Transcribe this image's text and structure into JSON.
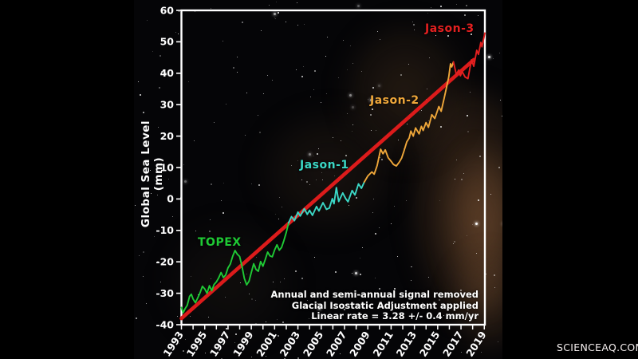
{
  "watermark": "SCIENCEAQ.COM",
  "chart_data": {
    "type": "line",
    "title": "",
    "xlabel": "",
    "ylabel": "Global Sea Level (mm)",
    "xlim": [
      1993,
      2019.05
    ],
    "ylim": [
      -40,
      60
    ],
    "grid": false,
    "y_ticks": [
      -40,
      -30,
      -20,
      -10,
      0,
      10,
      20,
      30,
      40,
      50,
      60
    ],
    "x_tick_labels": [
      1993,
      1995,
      1997,
      1999,
      2001,
      2003,
      2005,
      2007,
      2009,
      2011,
      2013,
      2015,
      2017,
      2019
    ],
    "x_minor_tick_interval": 1,
    "frame_color": "#ffffff",
    "annotations": [
      "Annual and semi-annual signal removed",
      "Glacial Isostatic Adjustment applied",
      "Linear rate =  3.28 +/- 0.4 mm/yr"
    ],
    "trend": {
      "label": "Linear trend",
      "rate_mm_per_yr": 3.28,
      "rate_uncertainty_mm_per_yr": 0.4,
      "color": "#dc1b1b",
      "start": [
        1993.0,
        -38.0
      ],
      "end": [
        2018.1,
        44.3
      ]
    },
    "series": [
      {
        "name": "TOPEX",
        "color": "#1fca35",
        "points": [
          [
            1993.0,
            -34.5
          ],
          [
            1993.15,
            -36.2
          ],
          [
            1993.3,
            -35.0
          ],
          [
            1993.5,
            -33.8
          ],
          [
            1993.7,
            -31.0
          ],
          [
            1993.85,
            -30.3
          ],
          [
            1994.0,
            -31.8
          ],
          [
            1994.2,
            -33.0
          ],
          [
            1994.4,
            -31.5
          ],
          [
            1994.6,
            -29.8
          ],
          [
            1994.8,
            -27.8
          ],
          [
            1995.0,
            -28.6
          ],
          [
            1995.2,
            -30.0
          ],
          [
            1995.4,
            -27.6
          ],
          [
            1995.6,
            -29.2
          ],
          [
            1995.8,
            -27.2
          ],
          [
            1996.0,
            -26.4
          ],
          [
            1996.2,
            -25.1
          ],
          [
            1996.4,
            -23.4
          ],
          [
            1996.6,
            -25.0
          ],
          [
            1996.8,
            -24.2
          ],
          [
            1997.0,
            -21.9
          ],
          [
            1997.2,
            -20.7
          ],
          [
            1997.4,
            -18.2
          ],
          [
            1997.6,
            -16.4
          ],
          [
            1997.8,
            -17.6
          ],
          [
            1998.0,
            -18.3
          ],
          [
            1998.2,
            -21.5
          ],
          [
            1998.4,
            -25.3
          ],
          [
            1998.6,
            -27.3
          ],
          [
            1998.8,
            -26.2
          ],
          [
            1999.0,
            -23.4
          ],
          [
            1999.2,
            -20.6
          ],
          [
            1999.4,
            -22.4
          ],
          [
            1999.6,
            -23.0
          ],
          [
            1999.8,
            -19.9
          ],
          [
            2000.0,
            -21.4
          ],
          [
            2000.2,
            -19.2
          ],
          [
            2000.4,
            -16.9
          ],
          [
            2000.6,
            -18.1
          ],
          [
            2000.8,
            -18.4
          ],
          [
            2001.0,
            -16.2
          ],
          [
            2001.2,
            -14.6
          ],
          [
            2001.4,
            -16.3
          ],
          [
            2001.6,
            -15.4
          ],
          [
            2001.8,
            -13.2
          ],
          [
            2002.0,
            -10.6
          ],
          [
            2002.2,
            -7.6
          ]
        ]
      },
      {
        "name": "Jason-1",
        "color": "#3bd8c6",
        "points": [
          [
            2002.2,
            -7.6
          ],
          [
            2002.45,
            -5.6
          ],
          [
            2002.7,
            -6.9
          ],
          [
            2003.0,
            -4.2
          ],
          [
            2003.2,
            -5.4
          ],
          [
            2003.55,
            -3.1
          ],
          [
            2003.8,
            -4.9
          ],
          [
            2004.0,
            -3.6
          ],
          [
            2004.25,
            -5.2
          ],
          [
            2004.6,
            -2.4
          ],
          [
            2004.8,
            -3.8
          ],
          [
            2005.15,
            -1.2
          ],
          [
            2005.45,
            -3.3
          ],
          [
            2005.7,
            -2.9
          ],
          [
            2005.95,
            0.1
          ],
          [
            2006.1,
            -1.5
          ],
          [
            2006.3,
            3.6
          ],
          [
            2006.5,
            -0.8
          ],
          [
            2006.85,
            1.9
          ],
          [
            2007.1,
            0.1
          ],
          [
            2007.3,
            -0.9
          ],
          [
            2007.65,
            2.7
          ],
          [
            2007.9,
            1.3
          ],
          [
            2008.2,
            4.8
          ],
          [
            2008.45,
            3.4
          ],
          [
            2008.7,
            5.4
          ]
        ]
      },
      {
        "name": "Jason-2",
        "color": "#efa73a",
        "points": [
          [
            2008.7,
            5.4
          ],
          [
            2009.0,
            7.3
          ],
          [
            2009.35,
            8.6
          ],
          [
            2009.55,
            7.9
          ],
          [
            2009.8,
            10.6
          ],
          [
            2010.1,
            15.8
          ],
          [
            2010.3,
            14.4
          ],
          [
            2010.5,
            15.6
          ],
          [
            2010.75,
            13.1
          ],
          [
            2011.0,
            12.0
          ],
          [
            2011.2,
            11.0
          ],
          [
            2011.45,
            10.5
          ],
          [
            2011.7,
            11.7
          ],
          [
            2011.9,
            13.0
          ],
          [
            2012.1,
            15.2
          ],
          [
            2012.35,
            18.2
          ],
          [
            2012.55,
            19.4
          ],
          [
            2012.7,
            21.6
          ],
          [
            2012.9,
            20.0
          ],
          [
            2013.1,
            22.6
          ],
          [
            2013.4,
            20.7
          ],
          [
            2013.6,
            23.1
          ],
          [
            2013.75,
            21.8
          ],
          [
            2014.0,
            24.3
          ],
          [
            2014.2,
            22.8
          ],
          [
            2014.5,
            26.8
          ],
          [
            2014.75,
            25.6
          ],
          [
            2015.1,
            29.4
          ],
          [
            2015.3,
            27.9
          ],
          [
            2015.55,
            32.0
          ],
          [
            2015.8,
            36.2
          ],
          [
            2015.95,
            38.8
          ],
          [
            2016.1,
            43.0
          ],
          [
            2016.2,
            42.0
          ],
          [
            2016.35,
            43.6
          ]
        ]
      },
      {
        "name": "Jason-3",
        "color": "#e42020",
        "points": [
          [
            2016.35,
            43.6
          ],
          [
            2016.6,
            39.6
          ],
          [
            2016.8,
            41.0
          ],
          [
            2016.95,
            39.2
          ],
          [
            2017.1,
            40.5
          ],
          [
            2017.35,
            38.8
          ],
          [
            2017.6,
            38.3
          ],
          [
            2017.9,
            44.3
          ],
          [
            2018.1,
            42.2
          ],
          [
            2018.35,
            47.3
          ],
          [
            2018.5,
            46.0
          ],
          [
            2018.7,
            49.8
          ],
          [
            2018.8,
            48.4
          ],
          [
            2019.05,
            52.8
          ]
        ]
      }
    ]
  }
}
